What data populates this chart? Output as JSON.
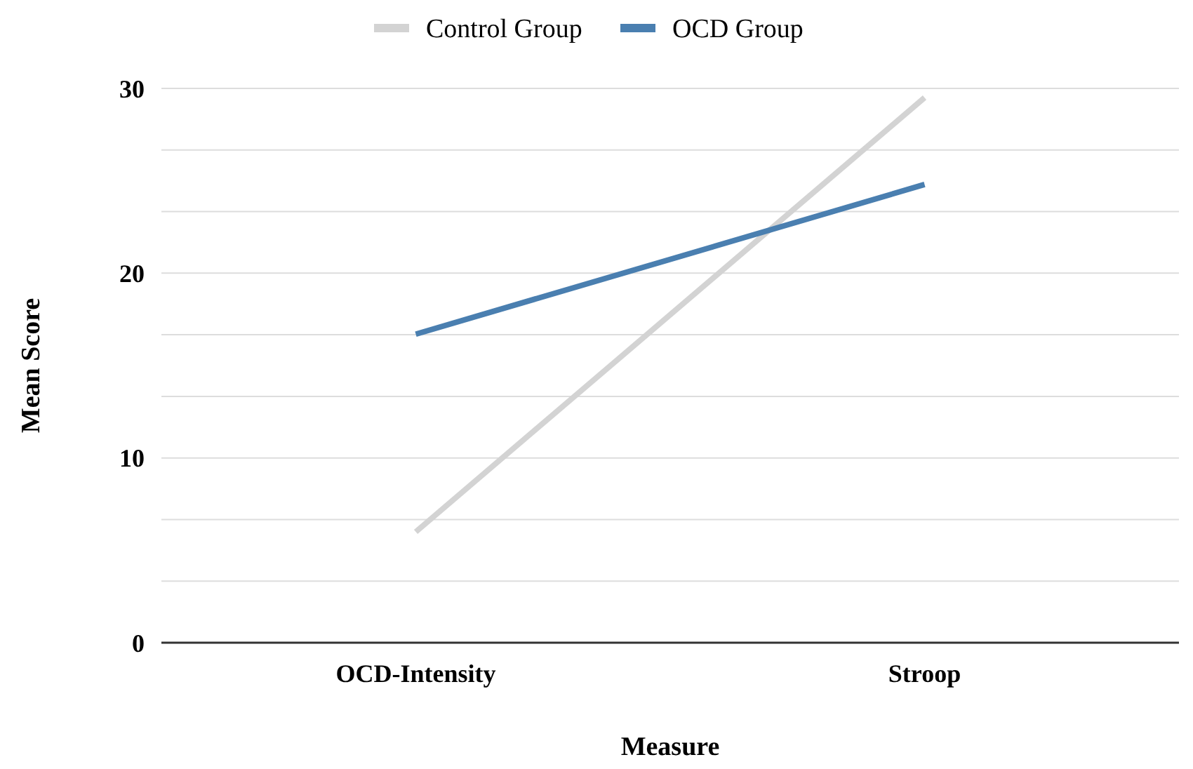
{
  "chart_data": {
    "type": "line",
    "xlabel": "Measure",
    "ylabel": "Mean Score",
    "categories": [
      "OCD-Intensity",
      "Stroop"
    ],
    "series": [
      {
        "name": "Control Group",
        "color": "#d3d3d3",
        "values": [
          6,
          29.5
        ]
      },
      {
        "name": "OCD Group",
        "color": "#4a7fb0",
        "values": [
          16.7,
          24.8
        ]
      }
    ],
    "ylim": [
      0,
      30
    ],
    "yticks": [
      0,
      {
        "value": 3.333,
        "label": null
      },
      {
        "value": 6.667,
        "label": null
      },
      10,
      {
        "value": 13.333,
        "label": null
      },
      {
        "value": 16.667,
        "label": null
      },
      20,
      {
        "value": 23.333,
        "label": null
      },
      {
        "value": 26.667,
        "label": null
      },
      30
    ],
    "grid": "y",
    "legend": "top",
    "marker": "none",
    "line_style": "solid"
  }
}
